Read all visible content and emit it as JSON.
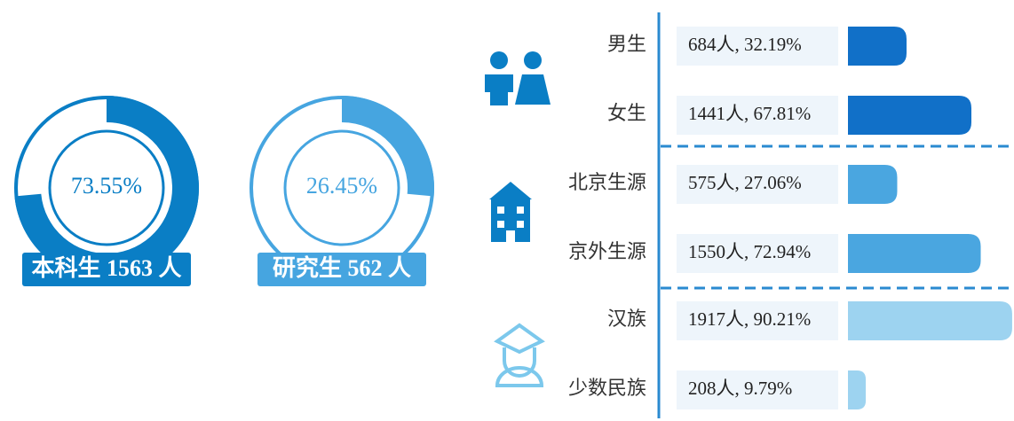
{
  "donuts": [
    {
      "value": 73.55,
      "value_label": "73.55%",
      "caption": "本科生 1563 人",
      "color": "#0a7ec5"
    },
    {
      "value": 26.45,
      "value_label": "26.45%",
      "caption": "研究生 562 人",
      "color": "#46a5e0"
    }
  ],
  "groups": [
    {
      "color": "#1170c8",
      "rows": [
        {
          "name": "男生",
          "label": "684人, 32.19%",
          "value": 32.19
        },
        {
          "name": "女生",
          "label": "1441人, 67.81%",
          "value": 67.81
        }
      ]
    },
    {
      "color": "#4aa6e0",
      "rows": [
        {
          "name": "北京生源",
          "label": "575人, 27.06%",
          "value": 27.06
        },
        {
          "name": "京外生源",
          "label": "1550人, 72.94%",
          "value": 72.94
        }
      ]
    },
    {
      "color": "#9dd3f0",
      "rows": [
        {
          "name": "汉族",
          "label": "1917人, 90.21%",
          "value": 90.21
        },
        {
          "name": "少数民族",
          "label": "208人, 9.79%",
          "value": 9.79
        }
      ]
    }
  ]
}
